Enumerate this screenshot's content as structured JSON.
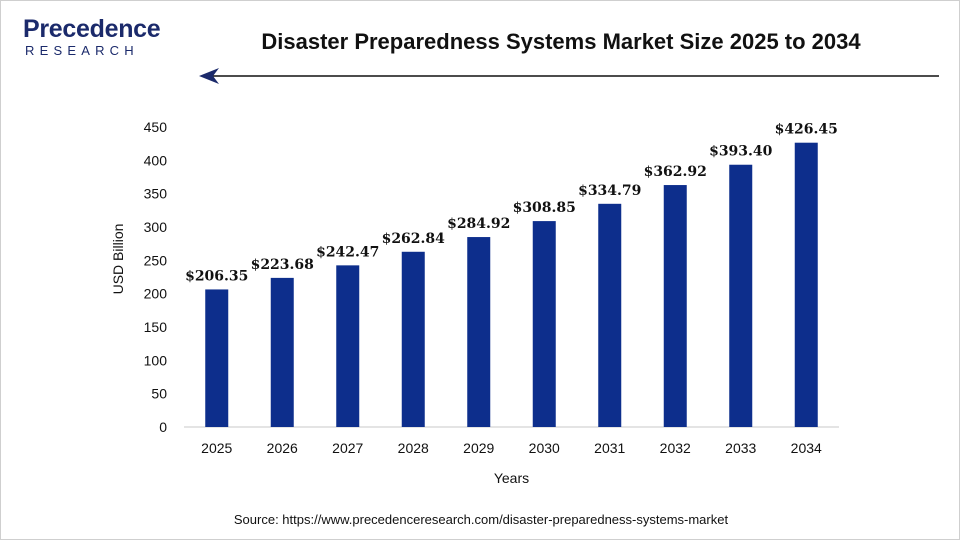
{
  "logo": {
    "main": "Precedence",
    "sub": "RESEARCH"
  },
  "colors": {
    "bar": "#0d2e8c",
    "logo": "#1b2a6b"
  },
  "source": "Source: https://www.precedenceresearch.com/disaster-preparedness-systems-market",
  "chart_data": {
    "type": "bar",
    "title": "Disaster Preparedness Systems Market Size 2025 to 2034",
    "xlabel": "Years",
    "ylabel": "USD Billion",
    "categories": [
      "2025",
      "2026",
      "2027",
      "2028",
      "2029",
      "2030",
      "2031",
      "2032",
      "2033",
      "2034"
    ],
    "values": [
      206.35,
      223.68,
      242.47,
      262.84,
      284.92,
      308.85,
      334.79,
      362.92,
      393.4,
      426.45
    ],
    "data_labels": [
      "$206.35",
      "$223.68",
      "$242.47",
      "$262.84",
      "$284.92",
      "$308.85",
      "$334.79",
      "$362.92",
      "$393.40",
      "$426.45"
    ],
    "ylim": [
      0,
      450
    ],
    "yticks": [
      "0",
      "50",
      "100",
      "150",
      "200",
      "250",
      "300",
      "350",
      "400",
      "450"
    ],
    "grid": false,
    "legend": "none"
  }
}
